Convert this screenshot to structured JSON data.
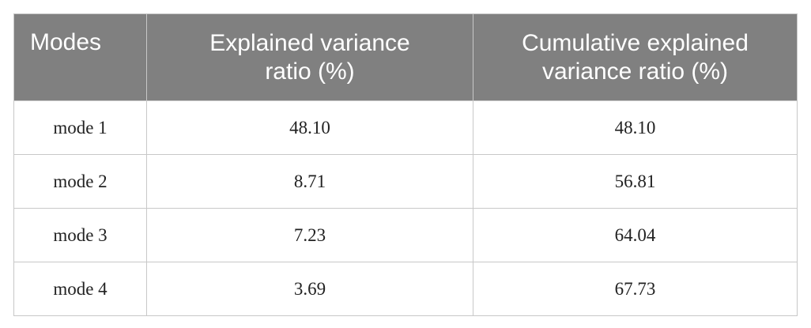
{
  "table": {
    "header": [
      "Modes",
      "Explained variance ratio (%)",
      "Cumulative explained variance ratio (%)"
    ],
    "rows": [
      [
        "mode 1",
        "48.10",
        "48.10"
      ],
      [
        "mode 2",
        "8.71",
        "56.81"
      ],
      [
        "mode 3",
        "7.23",
        "64.04"
      ],
      [
        "mode 4",
        "3.69",
        "67.73"
      ]
    ]
  }
}
